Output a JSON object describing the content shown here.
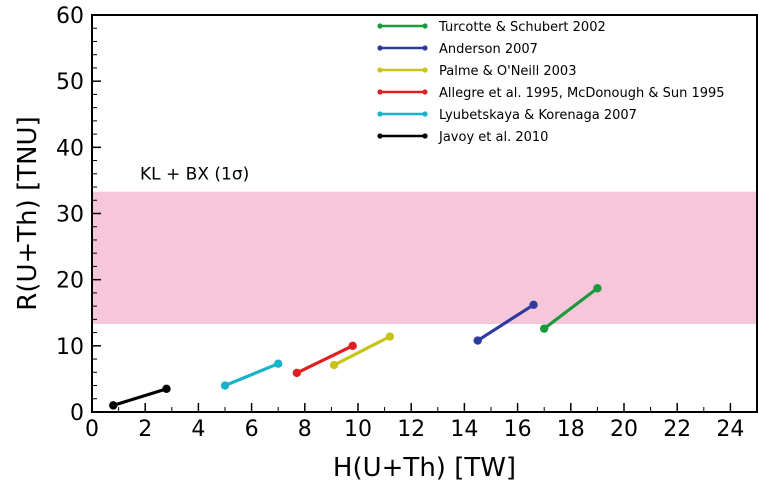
{
  "chart_data": {
    "type": "line",
    "xlabel": "H(U+Th) [TW]",
    "ylabel": "R(U+Th) [TNU]",
    "xlim": [
      0,
      25
    ],
    "ylim": [
      0,
      60
    ],
    "xticks": [
      "0",
      "2",
      "4",
      "6",
      "8",
      "10",
      "12",
      "14",
      "16",
      "18",
      "20",
      "22",
      "24"
    ],
    "yticks": [
      "0",
      "10",
      "20",
      "30",
      "40",
      "50",
      "60"
    ],
    "grid": false,
    "legend_position": "top-right",
    "band": {
      "label": "KL + BX (1σ)",
      "y_range": [
        13.3,
        33.3
      ],
      "color": "#f6c6da"
    },
    "series": [
      {
        "name": "Turcotte & Schubert 2002",
        "color": "#1a9a3a",
        "x": [
          17.0,
          19.0
        ],
        "y": [
          12.6,
          18.7
        ]
      },
      {
        "name": "Anderson 2007",
        "color": "#2e3a9e",
        "x": [
          14.5,
          16.6
        ],
        "y": [
          10.8,
          16.2
        ]
      },
      {
        "name": "Palme & O'Neill 2003",
        "color": "#c9c41a",
        "x": [
          9.1,
          11.2
        ],
        "y": [
          7.1,
          11.4
        ]
      },
      {
        "name": "Allegre et al. 1995, McDonough & Sun 1995",
        "color": "#e02020",
        "x": [
          7.7,
          9.8
        ],
        "y": [
          5.9,
          10.0
        ]
      },
      {
        "name": "Lyubetskaya & Korenaga 2007",
        "color": "#18b3c8",
        "x": [
          5.0,
          7.0
        ],
        "y": [
          4.0,
          7.3
        ]
      },
      {
        "name": "Javoy et al. 2010",
        "color": "#000000",
        "x": [
          0.8,
          2.8
        ],
        "y": [
          1.0,
          3.5
        ]
      }
    ]
  }
}
